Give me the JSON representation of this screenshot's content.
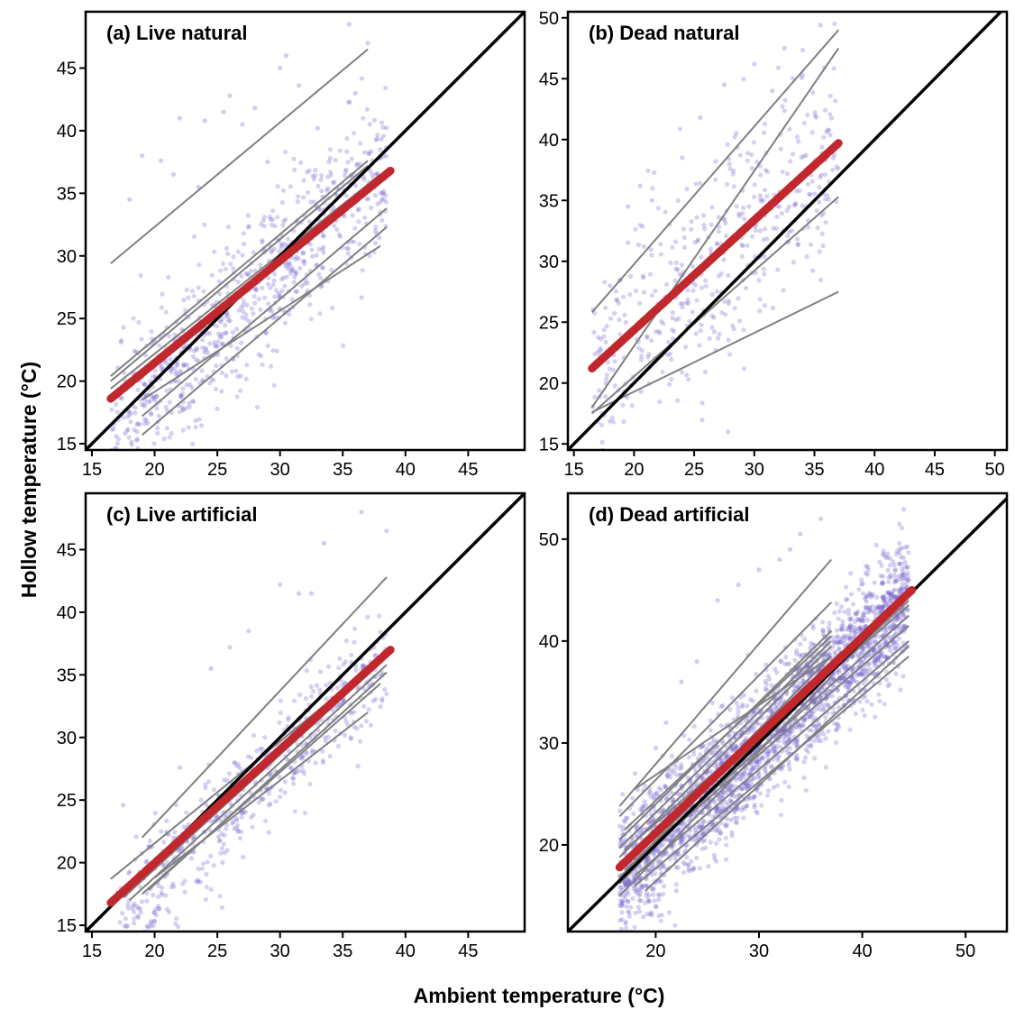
{
  "figure": {
    "xlabel": "Ambient temperature (°C)",
    "ylabel": "Hollow temperature (°C)"
  },
  "colors": {
    "points": "#6a5acd",
    "tree_lines": "#808080",
    "mean_line": "#c0282d",
    "identity_line": "#000000"
  },
  "chart_data": [
    {
      "type": "scatter",
      "title": "(a) Live natural",
      "xlim": [
        14.5,
        49.5
      ],
      "ylim": [
        14.5,
        49.5
      ],
      "xticks": [
        15,
        20,
        25,
        30,
        35,
        40,
        45
      ],
      "yticks": [
        15,
        20,
        25,
        30,
        35,
        40,
        45
      ],
      "identity_line": true,
      "mean_line": {
        "x": [
          16.5,
          38.8
        ],
        "y": [
          18.6,
          36.8
        ]
      },
      "tree_lines": [
        {
          "x": [
            16.5,
            37
          ],
          "y": [
            29.4,
            46.5
          ]
        },
        {
          "x": [
            16.5,
            37
          ],
          "y": [
            20.4,
            37.6
          ]
        },
        {
          "x": [
            16.5,
            37
          ],
          "y": [
            20.0,
            37.2
          ]
        },
        {
          "x": [
            16.5,
            38
          ],
          "y": [
            19.4,
            36.5
          ]
        },
        {
          "x": [
            19,
            38.5
          ],
          "y": [
            17.2,
            33.8
          ]
        },
        {
          "x": [
            19,
            38.5
          ],
          "y": [
            15.7,
            32.3
          ]
        },
        {
          "x": [
            19,
            38
          ],
          "y": [
            18.5,
            30.8
          ]
        }
      ],
      "points": {
        "count": 800,
        "x_range": [
          16.5,
          38.5
        ],
        "intercept": -1.0,
        "slope": 1.0,
        "spread": 3.2,
        "outliers": [
          [
            18,
            34.5
          ],
          [
            19,
            38
          ],
          [
            20.5,
            37.6
          ],
          [
            21.5,
            36.5
          ],
          [
            22,
            41
          ],
          [
            23.5,
            35.5
          ],
          [
            24,
            40.8
          ],
          [
            25.5,
            41.5
          ],
          [
            26,
            42.8
          ],
          [
            27,
            40.5
          ],
          [
            28,
            41.8
          ],
          [
            29,
            37.5
          ],
          [
            30,
            45
          ],
          [
            30.5,
            46
          ],
          [
            31.5,
            43.6
          ],
          [
            33,
            40.2
          ],
          [
            34,
            37.8
          ],
          [
            35.5,
            48.5
          ],
          [
            36,
            43
          ],
          [
            37,
            47
          ]
        ]
      }
    },
    {
      "type": "scatter",
      "title": "(b) Dead natural",
      "xlim": [
        14.5,
        51
      ],
      "ylim": [
        14.5,
        50.5
      ],
      "xticks": [
        15,
        20,
        25,
        30,
        35,
        40,
        45,
        50
      ],
      "yticks": [
        15,
        20,
        25,
        30,
        35,
        40,
        45,
        50
      ],
      "identity_line": true,
      "mean_line": {
        "x": [
          16.5,
          37
        ],
        "y": [
          21.2,
          39.7
        ]
      },
      "tree_lines": [
        {
          "x": [
            16.5,
            37
          ],
          "y": [
            25.8,
            49.0
          ]
        },
        {
          "x": [
            16.5,
            37
          ],
          "y": [
            18.0,
            47.5
          ]
        },
        {
          "x": [
            16.5,
            37
          ],
          "y": [
            17.5,
            35.3
          ]
        },
        {
          "x": [
            16.5,
            37
          ],
          "y": [
            17.6,
            27.5
          ]
        }
      ],
      "points": {
        "count": 450,
        "x_range": [
          16.5,
          37
        ],
        "intercept": 6.0,
        "slope": 0.9,
        "spread": 5.0,
        "outliers": [
          [
            18,
            28
          ],
          [
            19.5,
            34.5
          ],
          [
            20.5,
            36.2
          ],
          [
            21.5,
            35
          ],
          [
            24,
            38.5
          ],
          [
            25.5,
            41.8
          ],
          [
            27.5,
            44.5
          ],
          [
            28.5,
            40.5
          ],
          [
            30,
            46.2
          ],
          [
            31.5,
            44
          ],
          [
            32.5,
            47.5
          ],
          [
            34,
            45.3
          ],
          [
            35.5,
            49.4
          ]
        ]
      }
    },
    {
      "type": "scatter",
      "title": "(c) Live artificial",
      "xlim": [
        14.5,
        49.5
      ],
      "ylim": [
        14.5,
        49.5
      ],
      "xticks": [
        15,
        20,
        25,
        30,
        35,
        40,
        45
      ],
      "yticks": [
        15,
        20,
        25,
        30,
        35,
        40,
        45
      ],
      "identity_line": true,
      "mean_line": {
        "x": [
          16.5,
          38.8
        ],
        "y": [
          16.8,
          37.0
        ]
      },
      "tree_lines": [
        {
          "x": [
            19,
            38.5
          ],
          "y": [
            22.0,
            42.8
          ]
        },
        {
          "x": [
            16.5,
            38
          ],
          "y": [
            18.7,
            36.2
          ]
        },
        {
          "x": [
            17.5,
            38.5
          ],
          "y": [
            17.2,
            36.4
          ]
        },
        {
          "x": [
            18,
            38.5
          ],
          "y": [
            17.0,
            35.8
          ]
        },
        {
          "x": [
            19,
            38
          ],
          "y": [
            17.5,
            34.3
          ]
        },
        {
          "x": [
            20,
            37
          ],
          "y": [
            18.8,
            32.0
          ]
        },
        {
          "x": [
            19.5,
            38.5
          ],
          "y": [
            17.8,
            35.2
          ]
        }
      ],
      "points": {
        "count": 550,
        "x_range": [
          17,
          38.5
        ],
        "intercept": -0.4,
        "slope": 0.95,
        "spread": 2.2,
        "outliers": [
          [
            17.5,
            24.6
          ],
          [
            22,
            27.6
          ],
          [
            24.5,
            35.5
          ],
          [
            26,
            37.2
          ],
          [
            27.5,
            38.5
          ],
          [
            30,
            42.2
          ],
          [
            31.5,
            41.5
          ],
          [
            32.5,
            41.5
          ],
          [
            33.5,
            45.5
          ],
          [
            36.5,
            48
          ],
          [
            38.5,
            46.5
          ],
          [
            20,
            16
          ]
        ]
      }
    },
    {
      "type": "scatter",
      "title": "(d) Dead artificial",
      "xlim": [
        11.5,
        54
      ],
      "ylim": [
        11.5,
        54.5
      ],
      "xticks": [
        20,
        30,
        40,
        50
      ],
      "yticks": [
        20,
        30,
        40,
        50
      ],
      "identity_line": true,
      "mean_line": {
        "x": [
          16.5,
          44.8
        ],
        "y": [
          17.8,
          45.0
        ]
      },
      "tree_lines": [
        {
          "x": [
            16.5,
            37
          ],
          "y": [
            23.8,
            48.0
          ]
        },
        {
          "x": [
            16.5,
            37
          ],
          "y": [
            22.8,
            43.8
          ]
        },
        {
          "x": [
            16.5,
            37
          ],
          "y": [
            20.5,
            41.0
          ]
        },
        {
          "x": [
            16.5,
            37
          ],
          "y": [
            19.7,
            40.0
          ]
        },
        {
          "x": [
            16.5,
            37
          ],
          "y": [
            18.8,
            39.5
          ]
        },
        {
          "x": [
            16.5,
            37
          ],
          "y": [
            17.5,
            38.5
          ]
        },
        {
          "x": [
            16.5,
            37
          ],
          "y": [
            16.2,
            37.5
          ]
        },
        {
          "x": [
            16.5,
            37
          ],
          "y": [
            15.0,
            36.5
          ]
        },
        {
          "x": [
            18,
            44.5
          ],
          "y": [
            17.0,
            40.0
          ]
        },
        {
          "x": [
            18,
            44.5
          ],
          "y": [
            16.0,
            38.5
          ]
        },
        {
          "x": [
            18,
            44.5
          ],
          "y": [
            18.5,
            42.5
          ]
        },
        {
          "x": [
            17,
            44.5
          ],
          "y": [
            19.5,
            43.5
          ]
        },
        {
          "x": [
            17,
            44.5
          ],
          "y": [
            17.5,
            41.5
          ]
        },
        {
          "x": [
            20,
            44.5
          ],
          "y": [
            21.0,
            44.0
          ]
        },
        {
          "x": [
            17,
            37
          ],
          "y": [
            21.5,
            40.5
          ]
        },
        {
          "x": [
            18,
            37
          ],
          "y": [
            25.5,
            38.5
          ]
        },
        {
          "x": [
            16.5,
            38
          ],
          "y": [
            16.8,
            39.0
          ]
        },
        {
          "x": [
            19,
            44.5
          ],
          "y": [
            15.5,
            39.5
          ]
        }
      ],
      "points": {
        "count": 2600,
        "x_range": [
          16.5,
          44.5
        ],
        "intercept": 0.5,
        "slope": 0.98,
        "spread": 3.0,
        "outliers": [
          [
            18,
            27
          ],
          [
            20,
            29.5
          ],
          [
            21,
            32
          ],
          [
            22.5,
            36
          ],
          [
            24,
            38
          ],
          [
            26,
            44
          ],
          [
            28,
            45.5
          ],
          [
            30,
            47
          ],
          [
            32,
            48
          ],
          [
            34,
            50.5
          ],
          [
            36,
            52
          ],
          [
            33,
            49
          ],
          [
            20,
            14
          ],
          [
            22,
            15.5
          ]
        ]
      }
    }
  ]
}
